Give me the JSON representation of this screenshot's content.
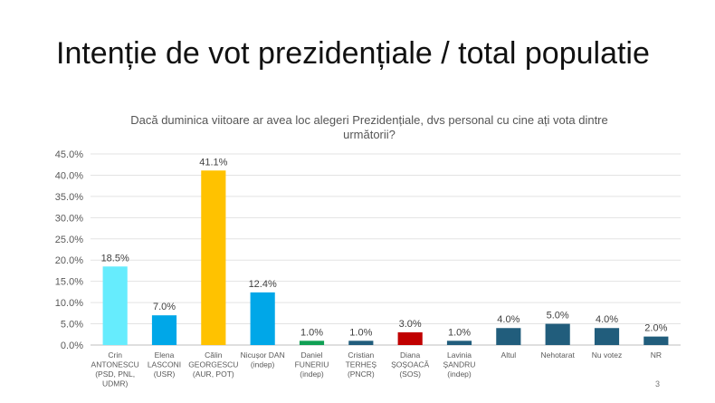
{
  "slide": {
    "title": "Intenție de vot prezidențiale / total populatie",
    "page_number": "3"
  },
  "chart_data": {
    "type": "bar",
    "title": "Dacă duminica viitoare ar avea loc alegeri Prezidențiale, dvs personal cu cine ați vota dintre următorii?",
    "title_lines": [
      "Dacă duminica viitoare ar avea loc alegeri Prezidențiale, dvs personal cu cine ați vota dintre",
      "următorii?"
    ],
    "xlabel": "",
    "ylabel": "",
    "ylim": [
      0,
      45
    ],
    "yticks": [
      "0.0%",
      "5.0%",
      "10.0%",
      "15.0%",
      "20.0%",
      "25.0%",
      "30.0%",
      "35.0%",
      "40.0%",
      "45.0%"
    ],
    "grid": true,
    "categories": [
      [
        "Crin",
        "ANTONESCU",
        "(PSD, PNL,",
        "UDMR)"
      ],
      [
        "Elena",
        "LASCONI",
        "(USR)"
      ],
      [
        "Călin",
        "GEORGESCU",
        "(AUR, POT)"
      ],
      [
        "Nicușor DAN",
        "(indep)"
      ],
      [
        "Daniel",
        "FUNERIU",
        "(indep)"
      ],
      [
        "Cristian",
        "TERHEȘ",
        "(PNCR)"
      ],
      [
        "Diana",
        "ȘOȘOACĂ",
        "(SOS)"
      ],
      [
        "Lavinia",
        "ȘANDRU",
        "(indep)"
      ],
      [
        "Altul"
      ],
      [
        "Nehotarat"
      ],
      [
        "Nu votez"
      ],
      [
        "NR"
      ]
    ],
    "values": [
      18.5,
      7.0,
      41.1,
      12.4,
      1.0,
      1.0,
      3.0,
      1.0,
      4.0,
      5.0,
      4.0,
      2.0
    ],
    "value_labels": [
      "18.5%",
      "7.0%",
      "41.1%",
      "12.4%",
      "1.0%",
      "1.0%",
      "3.0%",
      "1.0%",
      "4.0%",
      "5.0%",
      "4.0%",
      "2.0%"
    ],
    "colors": [
      "#66ecfd",
      "#00a7e8",
      "#ffc200",
      "#00a7e8",
      "#10a054",
      "#215d7c",
      "#c00000",
      "#215d7c",
      "#215d7c",
      "#215d7c",
      "#215d7c",
      "#215d7c"
    ]
  }
}
